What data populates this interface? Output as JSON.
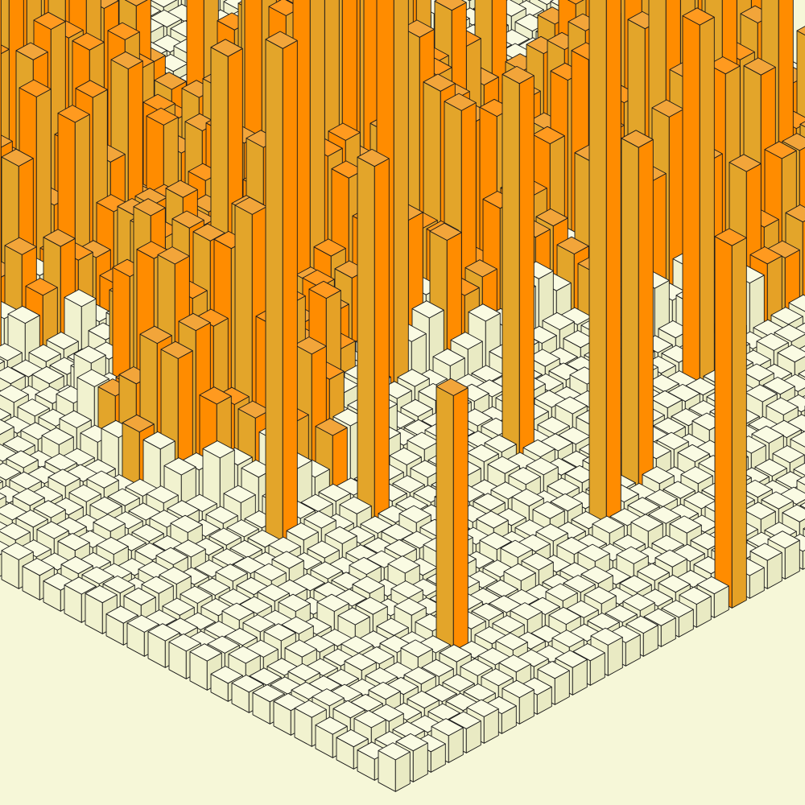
{
  "scene": {
    "kind": "isometric-3d-bar-field",
    "colors": {
      "background": "#f6f7d8",
      "base_top": "#fafbe3",
      "base_left": "#f1f2cf",
      "base_right": "#e9eac3",
      "warm_top": "#f2a53a",
      "warm_left": "#e3a52a",
      "warm_right": "#ff8c00",
      "hot_top": "#ff9a1f",
      "hot_left": "#ff8c00",
      "hot_right": "#e5a126",
      "outline": "#1a1a1a"
    },
    "palette_names": [
      "cream",
      "goldenrod",
      "dark-orange"
    ],
    "shown_levels": {
      "background_blocks": "low",
      "clusters": "tall"
    }
  }
}
